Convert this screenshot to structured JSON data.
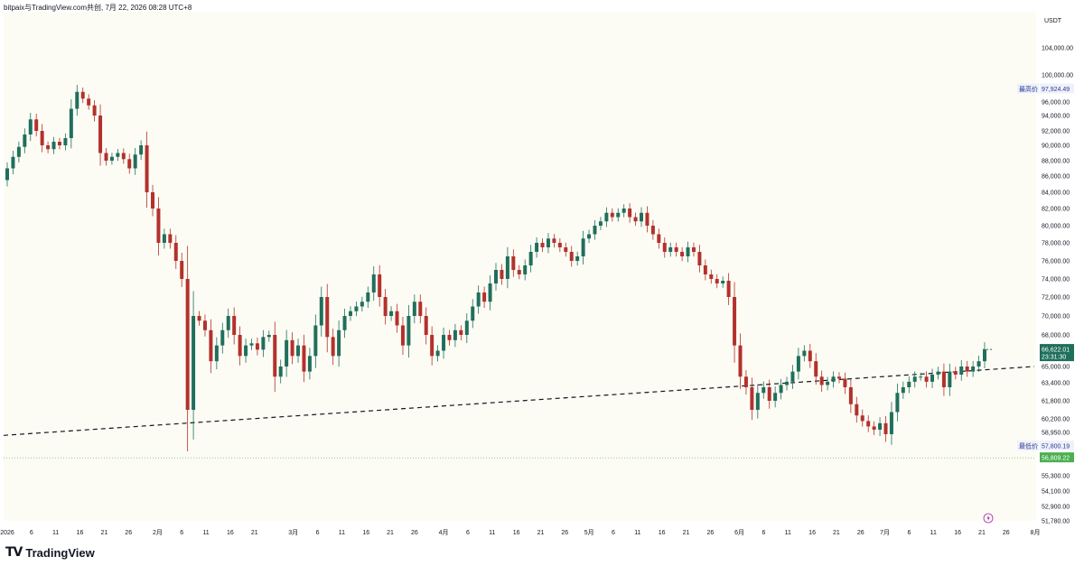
{
  "header": {
    "title": "bitpaix与TradingView.com共创, 7月 22, 2026 08:28 UTC+8"
  },
  "footer": {
    "brand": "TradingView",
    "logo_glyph": "TV"
  },
  "colors": {
    "up": "#1f6f5c",
    "down": "#b3312c",
    "bg": "#fdfcf4",
    "last_price_bg": "#1f6f5c",
    "low_marker_bg": "#4caf50"
  },
  "chart_data": {
    "type": "candlestick",
    "quote_currency": "USDT",
    "y_ticks": [
      "104,000.00",
      "100,000.00",
      "96,000.00",
      "94,000.00",
      "92,000.00",
      "90,000.00",
      "88,000.00",
      "86,000.00",
      "84,000.00",
      "82,000.00",
      "80,000.00",
      "78,000.00",
      "76,000.00",
      "74,000.00",
      "72,000.00",
      "70,000.00",
      "68,000.00",
      "65,000.00",
      "63,400.00",
      "61,800.00",
      "60,200.00",
      "58,950.00",
      "55,300.00",
      "54,100.00",
      "52,900.00",
      "51,780.00"
    ],
    "y_tick_values": [
      104000,
      100000,
      96000,
      94000,
      92000,
      90000,
      88000,
      86000,
      84000,
      82000,
      80000,
      78000,
      76000,
      74000,
      72000,
      70000,
      68000,
      65000,
      63400,
      61800,
      60200,
      58950,
      55300,
      54100,
      52900,
      51780
    ],
    "x_ticks": [
      "2026",
      "6",
      "11",
      "16",
      "21",
      "26",
      "2月",
      "6",
      "11",
      "16",
      "21",
      "3月",
      "6",
      "11",
      "16",
      "21",
      "26",
      "4月",
      "6",
      "11",
      "16",
      "21",
      "26",
      "5月",
      "6",
      "11",
      "16",
      "21",
      "26",
      "6月",
      "6",
      "11",
      "16",
      "21",
      "26",
      "7月",
      "6",
      "11",
      "16",
      "21",
      "26",
      "8月"
    ],
    "x_tick_days": [
      1,
      6,
      11,
      16,
      21,
      26,
      32,
      37,
      42,
      47,
      52,
      60,
      65,
      70,
      75,
      80,
      85,
      91,
      96,
      101,
      106,
      111,
      116,
      121,
      126,
      131,
      136,
      141,
      146,
      152,
      157,
      162,
      167,
      172,
      177,
      182,
      187,
      192,
      197,
      202,
      207,
      213
    ],
    "markers": {
      "high": {
        "label": "最高价",
        "value": "97,924.49"
      },
      "low": {
        "label": "最低价",
        "value": "57,800.19"
      },
      "last_price": {
        "value": "66,622.01",
        "countdown": "23:31:30"
      },
      "secondary_level": {
        "value": "56,809.22"
      }
    },
    "trendline": {
      "start": {
        "day": 1,
        "price": 58700
      },
      "end": {
        "day": 213,
        "price": 65000
      },
      "style": "dashed"
    },
    "closes": [
      87000,
      88500,
      89800,
      91500,
      93500,
      92000,
      90000,
      89500,
      90500,
      90000,
      91000,
      95000,
      97500,
      96500,
      95500,
      94000,
      89000,
      88000,
      88500,
      89000,
      88200,
      87000,
      88800,
      90000,
      84000,
      82000,
      78000,
      79000,
      78000,
      76000,
      74000,
      61000,
      70000,
      69500,
      68500,
      65500,
      67000,
      68500,
      70000,
      68000,
      66000,
      67000,
      67200,
      66600,
      67800,
      68000,
      64000,
      65000,
      67500,
      66000,
      67000,
      64500,
      66000,
      69000,
      72000,
      67800,
      66000,
      68500,
      70000,
      70500,
      71000,
      71500,
      72500,
      74500,
      72000,
      70000,
      70500,
      69000,
      67000,
      70000,
      71500,
      70000,
      68000,
      66000,
      66500,
      68000,
      67500,
      68500,
      68000,
      69500,
      71000,
      72500,
      71500,
      73500,
      75000,
      74000,
      76500,
      75000,
      74500,
      75500,
      77000,
      78000,
      77500,
      78500,
      78000,
      77500,
      77000,
      76000,
      76500,
      78500,
      79000,
      80000,
      80500,
      81500,
      81000,
      81500,
      82000,
      81000,
      80500,
      81500,
      80000,
      79000,
      78000,
      77000,
      77500,
      77000,
      76500,
      77500,
      77000,
      75500,
      74500,
      74000,
      73500,
      73800,
      72000,
      67000,
      64000,
      63000,
      61000,
      62500,
      63000,
      61800,
      62500,
      63200,
      63500,
      64500,
      66000,
      66500,
      65500,
      64000,
      63200,
      63500,
      64000,
      63800,
      63000,
      61500,
      60500,
      60000,
      59500,
      59200,
      59800,
      58800,
      60800,
      62500,
      63000,
      63500,
      64000,
      64000,
      63500,
      64200,
      64500,
      63000,
      64500,
      64200,
      65000,
      64500,
      65000,
      65500,
      66622
    ],
    "candles": [
      {
        "o": 85500,
        "c": 87000
      },
      {
        "o": 87000,
        "c": 88500
      },
      {
        "o": 88500,
        "c": 89800
      },
      {
        "o": 89800,
        "c": 91500
      },
      {
        "o": 91500,
        "c": 93500
      },
      {
        "o": 93500,
        "c": 92000
      },
      {
        "o": 92000,
        "c": 90000
      },
      {
        "o": 90000,
        "c": 89500
      },
      {
        "o": 89500,
        "c": 90500
      },
      {
        "o": 90500,
        "c": 90000
      },
      {
        "o": 90000,
        "c": 91000
      },
      {
        "o": 91000,
        "c": 95000
      },
      {
        "o": 95000,
        "c": 97500
      },
      {
        "o": 97500,
        "c": 96500
      },
      {
        "o": 96500,
        "c": 95500
      },
      {
        "o": 95500,
        "c": 94000
      },
      {
        "o": 94000,
        "c": 89000
      },
      {
        "o": 89000,
        "c": 88000
      },
      {
        "o": 88000,
        "c": 88500
      },
      {
        "o": 88500,
        "c": 89000
      },
      {
        "o": 89000,
        "c": 88200
      },
      {
        "o": 88200,
        "c": 87000
      },
      {
        "o": 87000,
        "c": 88800
      },
      {
        "o": 88800,
        "c": 90000
      },
      {
        "o": 90000,
        "c": 84000
      },
      {
        "o": 84000,
        "c": 82000
      },
      {
        "o": 82000,
        "c": 78000
      },
      {
        "o": 78000,
        "c": 79000
      },
      {
        "o": 79000,
        "c": 78000
      },
      {
        "o": 78000,
        "c": 76000
      },
      {
        "o": 76000,
        "c": 74000
      },
      {
        "o": 74000,
        "c": 61000
      },
      {
        "o": 61000,
        "c": 70000
      },
      {
        "o": 70000,
        "c": 69500
      },
      {
        "o": 69500,
        "c": 68500
      },
      {
        "o": 68500,
        "c": 65500
      },
      {
        "o": 65500,
        "c": 67000
      },
      {
        "o": 67000,
        "c": 68500
      },
      {
        "o": 68500,
        "c": 70000
      },
      {
        "o": 70000,
        "c": 68000
      },
      {
        "o": 68000,
        "c": 66000
      },
      {
        "o": 66000,
        "c": 67000
      },
      {
        "o": 67000,
        "c": 67200
      },
      {
        "o": 67200,
        "c": 66600
      },
      {
        "o": 66600,
        "c": 67800
      },
      {
        "o": 67800,
        "c": 68000
      },
      {
        "o": 68000,
        "c": 64000
      },
      {
        "o": 64000,
        "c": 65000
      },
      {
        "o": 65000,
        "c": 67500
      },
      {
        "o": 67500,
        "c": 66000
      },
      {
        "o": 66000,
        "c": 67000
      },
      {
        "o": 67000,
        "c": 64500
      },
      {
        "o": 64500,
        "c": 66000
      },
      {
        "o": 66000,
        "c": 69000
      },
      {
        "o": 69000,
        "c": 72000
      },
      {
        "o": 72000,
        "c": 67800
      },
      {
        "o": 67800,
        "c": 66000
      },
      {
        "o": 66000,
        "c": 68500
      },
      {
        "o": 68500,
        "c": 70000
      },
      {
        "o": 70000,
        "c": 70500
      },
      {
        "o": 70500,
        "c": 71000
      },
      {
        "o": 71000,
        "c": 71500
      },
      {
        "o": 71500,
        "c": 72500
      },
      {
        "o": 72500,
        "c": 74500
      },
      {
        "o": 74500,
        "c": 72000
      },
      {
        "o": 72000,
        "c": 70000
      },
      {
        "o": 70000,
        "c": 70500
      },
      {
        "o": 70500,
        "c": 69000
      },
      {
        "o": 69000,
        "c": 67000
      },
      {
        "o": 67000,
        "c": 70000
      },
      {
        "o": 70000,
        "c": 71500
      },
      {
        "o": 71500,
        "c": 70000
      },
      {
        "o": 70000,
        "c": 68000
      },
      {
        "o": 68000,
        "c": 66000
      },
      {
        "o": 66000,
        "c": 66500
      },
      {
        "o": 66500,
        "c": 68000
      },
      {
        "o": 68000,
        "c": 67500
      },
      {
        "o": 67500,
        "c": 68500
      },
      {
        "o": 68500,
        "c": 68000
      },
      {
        "o": 68000,
        "c": 69500
      },
      {
        "o": 69500,
        "c": 71000
      },
      {
        "o": 71000,
        "c": 72500
      },
      {
        "o": 72500,
        "c": 71500
      },
      {
        "o": 71500,
        "c": 73500
      },
      {
        "o": 73500,
        "c": 75000
      },
      {
        "o": 75000,
        "c": 74000
      },
      {
        "o": 74000,
        "c": 76500
      },
      {
        "o": 76500,
        "c": 75000
      },
      {
        "o": 75000,
        "c": 74500
      },
      {
        "o": 74500,
        "c": 75500
      },
      {
        "o": 75500,
        "c": 77000
      },
      {
        "o": 77000,
        "c": 78000
      },
      {
        "o": 78000,
        "c": 77500
      },
      {
        "o": 77500,
        "c": 78500
      },
      {
        "o": 78500,
        "c": 78000
      },
      {
        "o": 78000,
        "c": 77500
      },
      {
        "o": 77500,
        "c": 77000
      },
      {
        "o": 77000,
        "c": 76000
      },
      {
        "o": 76000,
        "c": 76500
      },
      {
        "o": 76500,
        "c": 78500
      },
      {
        "o": 78500,
        "c": 79000
      },
      {
        "o": 79000,
        "c": 80000
      },
      {
        "o": 80000,
        "c": 80500
      },
      {
        "o": 80500,
        "c": 81500
      },
      {
        "o": 81500,
        "c": 81000
      },
      {
        "o": 81000,
        "c": 81500
      },
      {
        "o": 81500,
        "c": 82000
      },
      {
        "o": 82000,
        "c": 81000
      },
      {
        "o": 81000,
        "c": 80500
      },
      {
        "o": 80500,
        "c": 81500
      },
      {
        "o": 81500,
        "c": 80000
      },
      {
        "o": 80000,
        "c": 79000
      },
      {
        "o": 79000,
        "c": 78000
      },
      {
        "o": 78000,
        "c": 77000
      },
      {
        "o": 77000,
        "c": 77500
      },
      {
        "o": 77500,
        "c": 77000
      },
      {
        "o": 77000,
        "c": 76500
      },
      {
        "o": 76500,
        "c": 77500
      },
      {
        "o": 77500,
        "c": 77000
      },
      {
        "o": 77000,
        "c": 75500
      },
      {
        "o": 75500,
        "c": 74500
      },
      {
        "o": 74500,
        "c": 74000
      },
      {
        "o": 74000,
        "c": 73500
      },
      {
        "o": 73500,
        "c": 73800
      },
      {
        "o": 73800,
        "c": 72000
      },
      {
        "o": 72000,
        "c": 67000
      },
      {
        "o": 67000,
        "c": 64000
      },
      {
        "o": 64000,
        "c": 63000
      },
      {
        "o": 63000,
        "c": 61000
      },
      {
        "o": 61000,
        "c": 62500
      },
      {
        "o": 62500,
        "c": 63000
      },
      {
        "o": 63000,
        "c": 61800
      },
      {
        "o": 61800,
        "c": 62500
      },
      {
        "o": 62500,
        "c": 63200
      },
      {
        "o": 63200,
        "c": 63500
      },
      {
        "o": 63500,
        "c": 64500
      },
      {
        "o": 64500,
        "c": 66000
      },
      {
        "o": 66000,
        "c": 66500
      },
      {
        "o": 66500,
        "c": 65500
      },
      {
        "o": 65500,
        "c": 64000
      },
      {
        "o": 64000,
        "c": 63200
      },
      {
        "o": 63200,
        "c": 63500
      },
      {
        "o": 63500,
        "c": 64000
      },
      {
        "o": 64000,
        "c": 63800
      },
      {
        "o": 63800,
        "c": 63000
      },
      {
        "o": 63000,
        "c": 61500
      },
      {
        "o": 61500,
        "c": 60500
      },
      {
        "o": 60500,
        "c": 60000
      },
      {
        "o": 60000,
        "c": 59500
      },
      {
        "o": 59500,
        "c": 59200
      },
      {
        "o": 59200,
        "c": 59800
      },
      {
        "o": 59800,
        "c": 58800
      },
      {
        "o": 58800,
        "c": 60800
      },
      {
        "o": 60800,
        "c": 62500
      },
      {
        "o": 62500,
        "c": 63000
      },
      {
        "o": 63000,
        "c": 63500
      },
      {
        "o": 63500,
        "c": 64000
      },
      {
        "o": 64000,
        "c": 64000
      },
      {
        "o": 64000,
        "c": 63500
      },
      {
        "o": 63500,
        "c": 64200
      },
      {
        "o": 64200,
        "c": 64500
      },
      {
        "o": 64500,
        "c": 63000
      },
      {
        "o": 63000,
        "c": 64500
      },
      {
        "o": 64500,
        "c": 64200
      },
      {
        "o": 64200,
        "c": 65000
      },
      {
        "o": 65000,
        "c": 64500
      },
      {
        "o": 64500,
        "c": 65000
      },
      {
        "o": 65000,
        "c": 65500
      },
      {
        "o": 65500,
        "c": 66622
      }
    ]
  }
}
